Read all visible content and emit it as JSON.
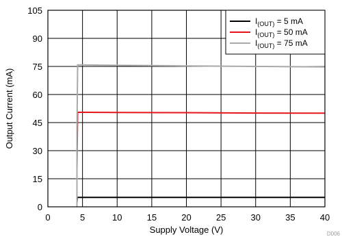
{
  "chart_data": {
    "type": "line",
    "xlabel": "Supply Voltage (V)",
    "ylabel": "Output Current (mA)",
    "xlim": [
      0,
      40
    ],
    "ylim": [
      0,
      105
    ],
    "xticks": [
      0,
      5,
      10,
      15,
      20,
      25,
      30,
      35,
      40
    ],
    "yticks": [
      0,
      15,
      30,
      45,
      60,
      75,
      90,
      105
    ],
    "grid": true,
    "legend_position": "top-right",
    "series": [
      {
        "name": "I(OUT) = 5 mA",
        "legend": {
          "prefix": "I",
          "sub": "(OUT)",
          "suffix": " = 5 mA"
        },
        "color": "#000000",
        "x": [
          4.2,
          4.2,
          4.25,
          5,
          10,
          20,
          30,
          40
        ],
        "y": [
          0,
          2,
          5,
          5,
          5,
          5,
          5,
          5
        ]
      },
      {
        "name": "I(OUT) = 50 mA",
        "legend": {
          "prefix": "I",
          "sub": "(OUT)",
          "suffix": " = 50 mA"
        },
        "color": "#e8141c",
        "x": [
          4.2,
          4.2,
          4.3,
          5,
          10,
          20,
          30,
          40
        ],
        "y": [
          0,
          20,
          50.5,
          50.5,
          50.4,
          50.3,
          50.1,
          50.0
        ]
      },
      {
        "name": "I(OUT) = 75 mA",
        "legend": {
          "prefix": "I",
          "sub": "(OUT)",
          "suffix": " = 75 mA"
        },
        "color": "#a9a9a9",
        "x": [
          4.2,
          4.2,
          4.3,
          5,
          10,
          20,
          30,
          40
        ],
        "y": [
          0,
          40,
          75.8,
          75.8,
          75.6,
          75.3,
          75.0,
          74.7
        ]
      }
    ]
  },
  "watermark": "D006"
}
